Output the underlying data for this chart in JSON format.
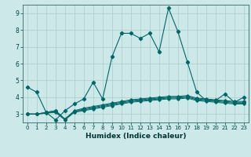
{
  "xlabel": "Humidex (Indice chaleur)",
  "background_color": "#cce8e8",
  "grid_color": "#aacccc",
  "line_color": "#006666",
  "xlim": [
    -0.5,
    23.5
  ],
  "ylim": [
    2.5,
    9.5
  ],
  "xticks": [
    0,
    1,
    2,
    3,
    4,
    5,
    6,
    7,
    8,
    9,
    10,
    11,
    12,
    13,
    14,
    15,
    16,
    17,
    18,
    19,
    20,
    21,
    22,
    23
  ],
  "yticks": [
    3,
    4,
    5,
    6,
    7,
    8,
    9
  ],
  "series": [
    [
      4.6,
      4.3,
      3.1,
      2.65,
      3.2,
      3.6,
      3.9,
      4.9,
      3.9,
      6.4,
      7.8,
      7.8,
      7.5,
      7.8,
      6.7,
      9.3,
      7.9,
      6.1,
      4.3,
      3.8,
      3.8,
      4.2,
      3.7,
      4.0
    ],
    [
      3.0,
      3.0,
      3.05,
      3.1,
      2.65,
      3.1,
      3.2,
      3.3,
      3.4,
      3.5,
      3.6,
      3.7,
      3.75,
      3.8,
      3.85,
      3.9,
      3.9,
      3.95,
      3.8,
      3.75,
      3.7,
      3.65,
      3.6,
      3.6
    ],
    [
      3.0,
      3.0,
      3.05,
      3.15,
      2.7,
      3.15,
      3.25,
      3.35,
      3.45,
      3.55,
      3.65,
      3.75,
      3.8,
      3.85,
      3.9,
      3.95,
      3.95,
      4.0,
      3.85,
      3.8,
      3.75,
      3.7,
      3.65,
      3.65
    ],
    [
      3.0,
      3.0,
      3.1,
      3.2,
      2.7,
      3.15,
      3.3,
      3.4,
      3.5,
      3.6,
      3.7,
      3.8,
      3.85,
      3.9,
      3.95,
      4.0,
      4.0,
      4.05,
      3.9,
      3.85,
      3.8,
      3.75,
      3.7,
      3.7
    ],
    [
      3.0,
      3.0,
      3.1,
      3.2,
      2.7,
      3.2,
      3.35,
      3.45,
      3.55,
      3.65,
      3.75,
      3.85,
      3.9,
      3.95,
      4.0,
      4.05,
      4.05,
      4.1,
      3.95,
      3.9,
      3.85,
      3.8,
      3.75,
      3.75
    ]
  ]
}
